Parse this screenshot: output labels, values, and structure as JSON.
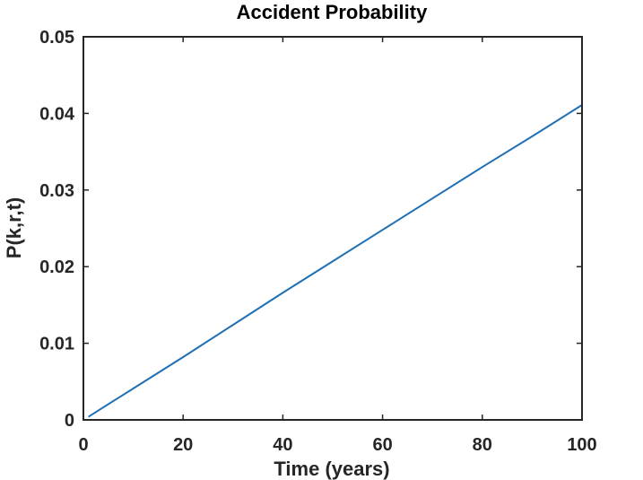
{
  "chart_data": {
    "type": "line",
    "title": "Accident Probability",
    "xlabel": "Time (years)",
    "ylabel": "P(k,r,t)",
    "xlim": [
      0,
      100
    ],
    "ylim": [
      0,
      0.05
    ],
    "xticks": [
      0,
      20,
      40,
      60,
      80,
      100
    ],
    "xtick_labels": [
      "0",
      "20",
      "40",
      "60",
      "80",
      "100"
    ],
    "yticks": [
      0,
      0.01,
      0.02,
      0.03,
      0.04,
      0.05
    ],
    "ytick_labels": [
      "0",
      "0.01",
      "0.02",
      "0.03",
      "0.04",
      "0.05"
    ],
    "grid": false,
    "legend": "none",
    "series": [
      {
        "color": "#1f6fb4",
        "x": [
          1,
          10,
          20,
          30,
          40,
          50,
          60,
          70,
          80,
          90,
          100
        ],
        "y": [
          0.0004,
          0.0041,
          0.0082,
          0.0124,
          0.0166,
          0.0207,
          0.0248,
          0.0289,
          0.033,
          0.037,
          0.0411
        ]
      }
    ]
  }
}
